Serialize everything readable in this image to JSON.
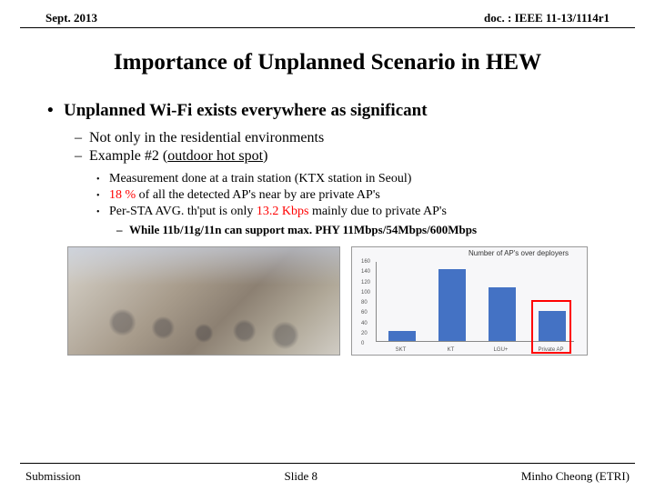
{
  "header": {
    "date": "Sept. 2013",
    "doc": "doc. : IEEE 11-13/1114r1"
  },
  "title": "Importance of Unplanned Scenario in HEW",
  "bullet1": "Unplanned Wi-Fi exists everywhere as significant",
  "dash1": "Not only in the residential environments",
  "dash2_pre": "Example #2 (",
  "dash2_u": "outdoor hot spot",
  "dash2_post": ")",
  "dot1": "Measurement done at a train station (KTX station in Seoul)",
  "dot2_pre": "",
  "dot2_red": "18 %",
  "dot2_post": " of all the detected AP's near by are private AP's",
  "dot3_a": "Per-STA AVG. th'put is only ",
  "dot3_red": "13.2 Kbps",
  "dot3_b": " mainly due to private AP's",
  "subdash": "While 11b/11g/11n can support max. PHY 11Mbps/54Mbps/600Mbps",
  "chart": {
    "title": "Number of AP's over deployers",
    "ymax": 160,
    "ytick_step": 20,
    "categories": [
      "SKT",
      "KT",
      "LGU+",
      "Private AP"
    ],
    "values": [
      20,
      140,
      105,
      58
    ],
    "bar_color": "#4472c4",
    "background": "#f7f7f9",
    "highlight_index": 3,
    "highlight_color": "#ff0000"
  },
  "footer": {
    "left": "Submission",
    "center": "Slide 8",
    "right": "Minho Cheong (ETRI)"
  }
}
